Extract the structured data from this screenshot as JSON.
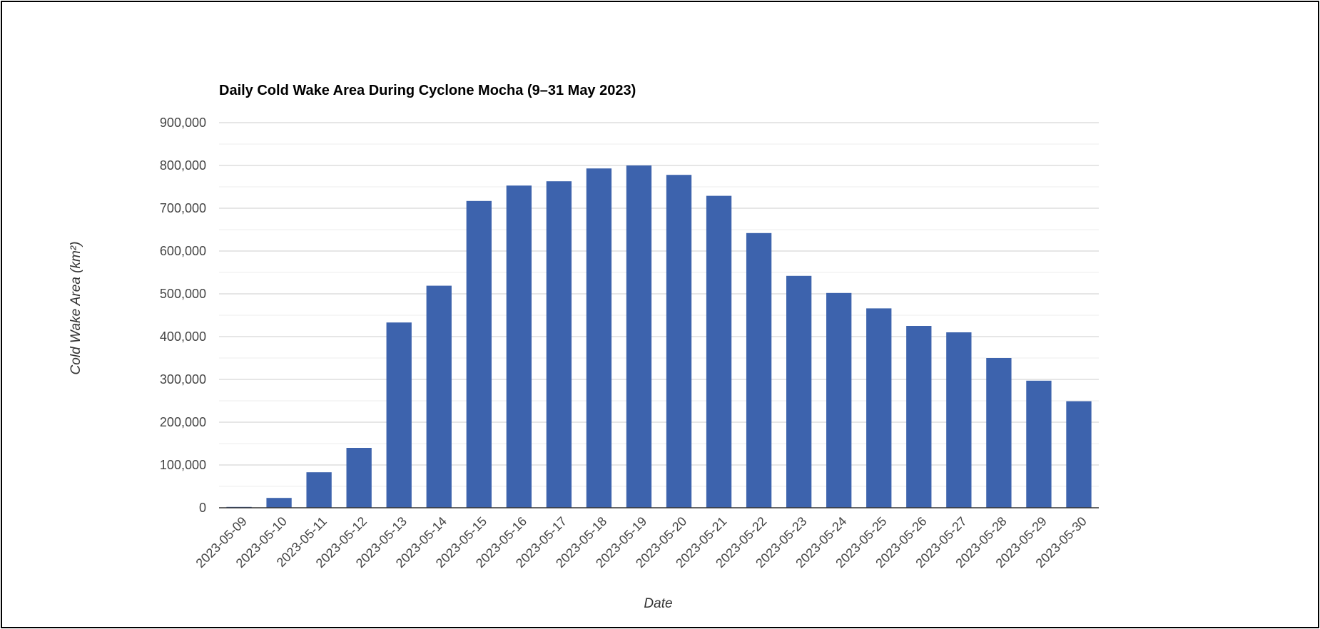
{
  "chart_data": {
    "type": "bar",
    "title": "Daily Cold Wake Area During Cyclone Mocha (9–31 May 2023)",
    "xlabel": "Date",
    "ylabel": "Cold Wake Area (km²)",
    "ylim": [
      0,
      900000
    ],
    "yticks": [
      "0",
      "100,000",
      "200,000",
      "300,000",
      "400,000",
      "500,000",
      "600,000",
      "700,000",
      "800,000",
      "900,000"
    ],
    "grid": true,
    "bar_color": "#3d63ad",
    "categories": [
      "2023-05-09",
      "2023-05-10",
      "2023-05-11",
      "2023-05-12",
      "2023-05-13",
      "2023-05-14",
      "2023-05-15",
      "2023-05-16",
      "2023-05-17",
      "2023-05-18",
      "2023-05-19",
      "2023-05-20",
      "2023-05-21",
      "2023-05-22",
      "2023-05-23",
      "2023-05-24",
      "2023-05-25",
      "2023-05-26",
      "2023-05-27",
      "2023-05-28",
      "2023-05-29",
      "2023-05-30"
    ],
    "values": [
      2000,
      23000,
      83000,
      140000,
      433000,
      519000,
      717000,
      753000,
      763000,
      793000,
      800000,
      778000,
      729000,
      642000,
      542000,
      502000,
      466000,
      425000,
      410000,
      350000,
      297000,
      249000
    ]
  }
}
